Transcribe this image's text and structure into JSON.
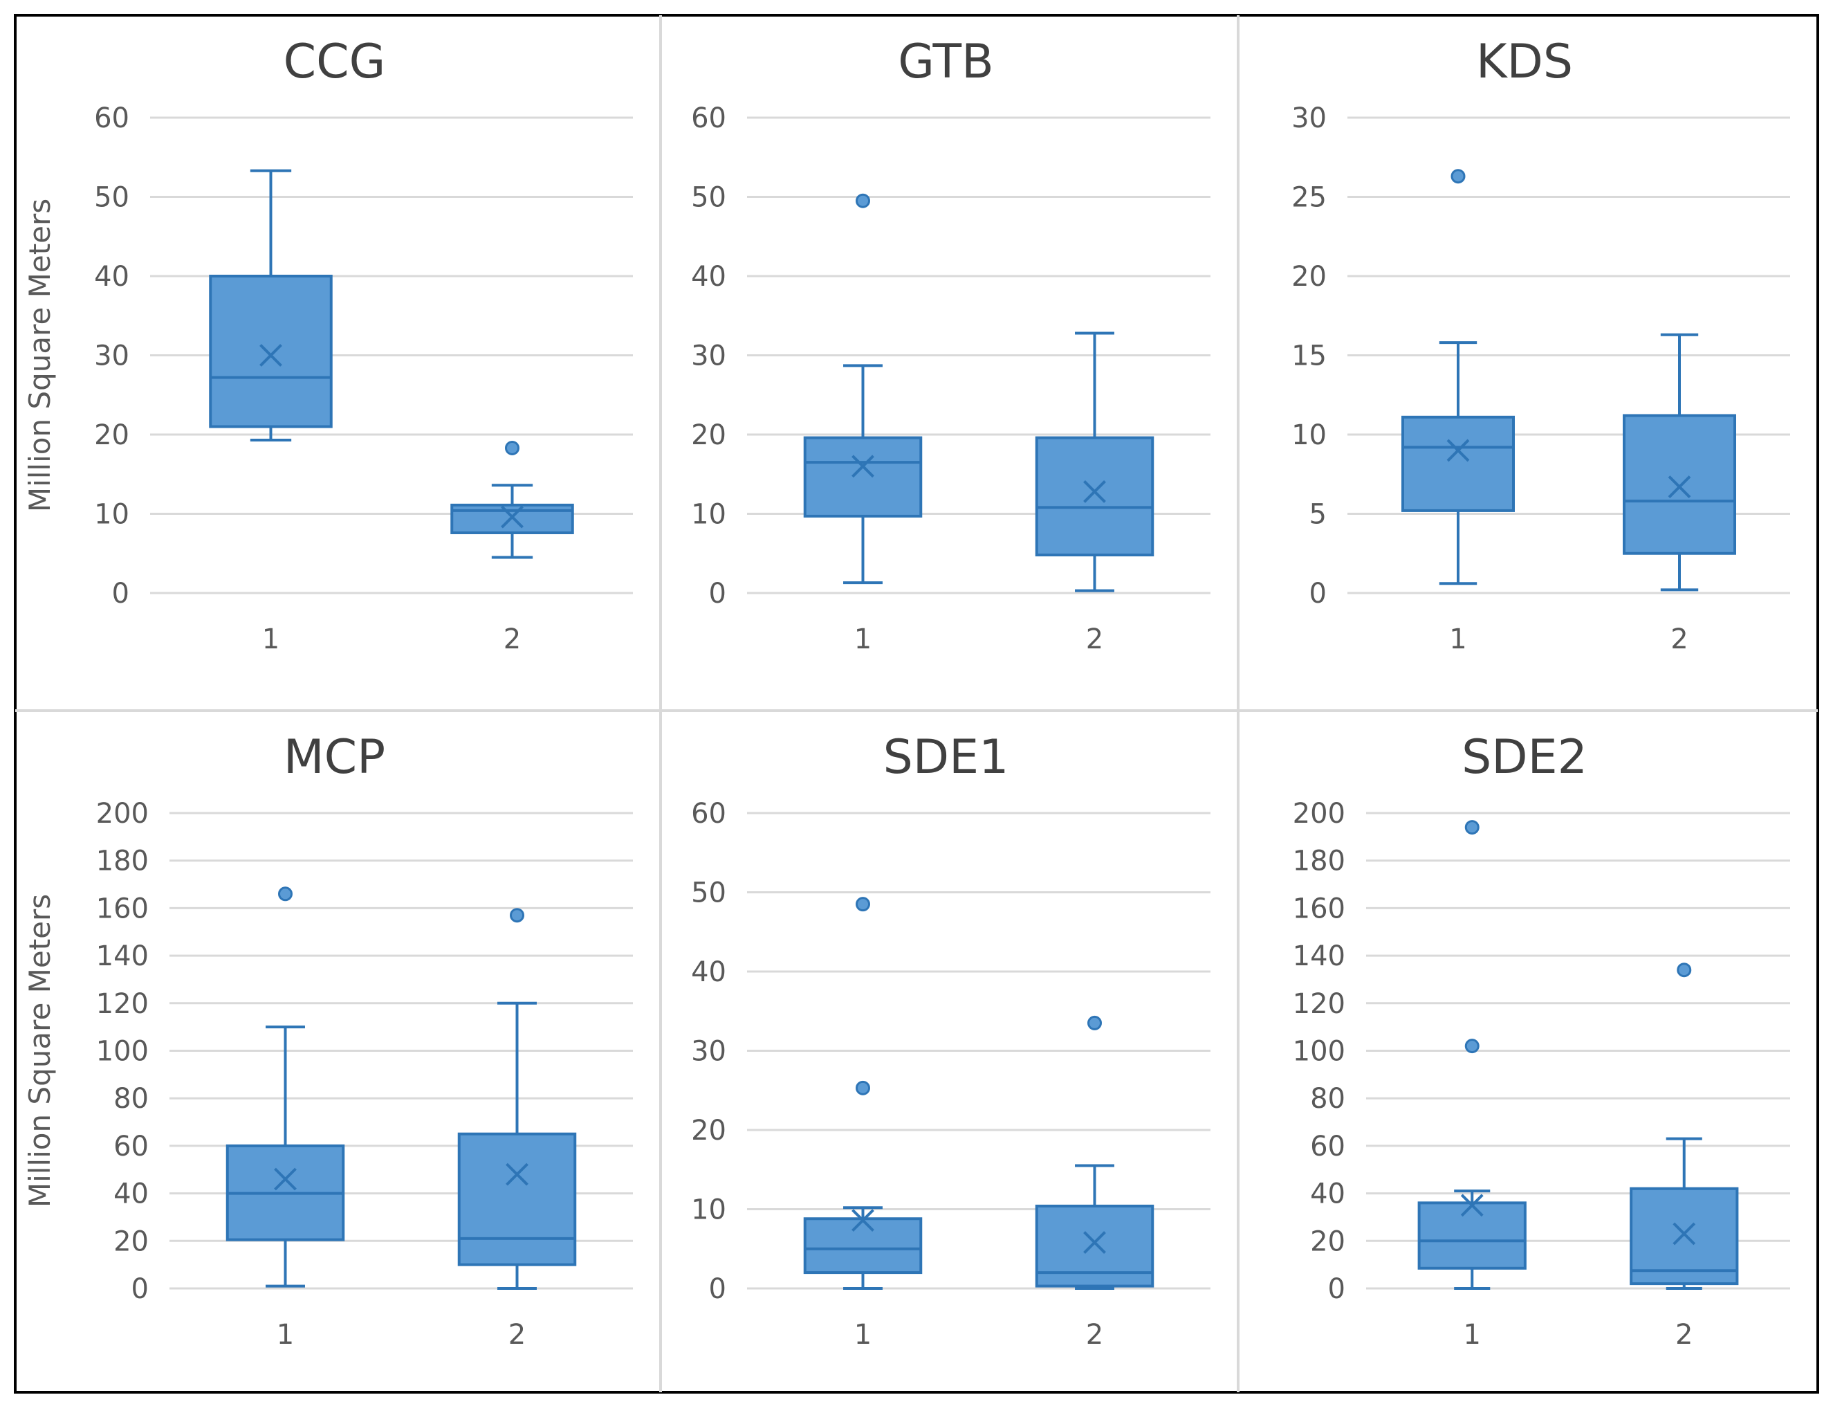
{
  "chart_data": {
    "type": "boxplot",
    "figure_ylabel": "Million Square Meters",
    "categories": [
      "1",
      "2"
    ],
    "colors": {
      "box_fill": "#5b9bd5",
      "box_stroke": "#2e75b6",
      "grid": "#d9d9d9",
      "text": "#595959",
      "title": "#404040",
      "frame": "#000000"
    },
    "panels": [
      {
        "title": "CCG",
        "ylim": [
          0,
          60
        ],
        "yticks": [
          "0",
          "10",
          "20",
          "30",
          "40",
          "50",
          "60"
        ],
        "show_ylabel": true,
        "boxes": [
          {
            "category": "1",
            "whisker_low": 19.3,
            "q1": 21,
            "median": 27.2,
            "q3": 40,
            "whisker_high": 53.3,
            "mean": 30,
            "outliers": []
          },
          {
            "category": "2",
            "whisker_low": 4.5,
            "q1": 7.6,
            "median": 10.4,
            "q3": 11.1,
            "whisker_high": 13.6,
            "mean": 9.6,
            "outliers": [
              18.3
            ]
          }
        ]
      },
      {
        "title": "GTB",
        "ylim": [
          0,
          60
        ],
        "yticks": [
          "0",
          "10",
          "20",
          "30",
          "40",
          "50",
          "60"
        ],
        "show_ylabel": false,
        "boxes": [
          {
            "category": "1",
            "whisker_low": 1.3,
            "q1": 9.7,
            "median": 16.5,
            "q3": 19.6,
            "whisker_high": 28.7,
            "mean": 16,
            "outliers": [
              49.5
            ]
          },
          {
            "category": "2",
            "whisker_low": 0.3,
            "q1": 4.8,
            "median": 10.8,
            "q3": 19.6,
            "whisker_high": 32.8,
            "mean": 12.8,
            "outliers": []
          }
        ]
      },
      {
        "title": "KDS",
        "ylim": [
          0,
          30
        ],
        "yticks": [
          "0",
          "5",
          "10",
          "15",
          "20",
          "25",
          "30"
        ],
        "show_ylabel": false,
        "boxes": [
          {
            "category": "1",
            "whisker_low": 0.6,
            "q1": 5.2,
            "median": 9.2,
            "q3": 11.1,
            "whisker_high": 15.8,
            "mean": 9,
            "outliers": [
              26.3
            ]
          },
          {
            "category": "2",
            "whisker_low": 0.2,
            "q1": 2.5,
            "median": 5.8,
            "q3": 11.2,
            "whisker_high": 16.3,
            "mean": 6.7,
            "outliers": []
          }
        ]
      },
      {
        "title": "MCP",
        "ylim": [
          0,
          200
        ],
        "yticks": [
          "0",
          "20",
          "40",
          "60",
          "80",
          "100",
          "120",
          "140",
          "160",
          "180",
          "200"
        ],
        "show_ylabel": true,
        "boxes": [
          {
            "category": "1",
            "whisker_low": 1,
            "q1": 20.5,
            "median": 40,
            "q3": 60,
            "whisker_high": 110,
            "mean": 46,
            "outliers": [
              166
            ]
          },
          {
            "category": "2",
            "whisker_low": 0,
            "q1": 10,
            "median": 21,
            "q3": 65,
            "whisker_high": 120,
            "mean": 48,
            "outliers": [
              157
            ]
          }
        ]
      },
      {
        "title": "SDE1",
        "ylim": [
          0,
          60
        ],
        "yticks": [
          "0",
          "10",
          "20",
          "30",
          "40",
          "50",
          "60"
        ],
        "show_ylabel": false,
        "boxes": [
          {
            "category": "1",
            "whisker_low": 0,
            "q1": 2,
            "median": 5,
            "q3": 8.8,
            "whisker_high": 10.2,
            "mean": 8.6,
            "outliers": [
              25.3,
              48.5
            ]
          },
          {
            "category": "2",
            "whisker_low": 0,
            "q1": 0.3,
            "median": 2,
            "q3": 10.4,
            "whisker_high": 15.5,
            "mean": 5.8,
            "outliers": [
              33.5
            ]
          }
        ]
      },
      {
        "title": "SDE2",
        "ylim": [
          0,
          200
        ],
        "yticks": [
          "0",
          "20",
          "40",
          "60",
          "80",
          "100",
          "120",
          "140",
          "160",
          "180",
          "200"
        ],
        "show_ylabel": false,
        "boxes": [
          {
            "category": "1",
            "whisker_low": 0,
            "q1": 8.5,
            "median": 20,
            "q3": 36,
            "whisker_high": 41,
            "mean": 35,
            "outliers": [
              102,
              194
            ]
          },
          {
            "category": "2",
            "whisker_low": 0,
            "q1": 2,
            "median": 7.5,
            "q3": 42,
            "whisker_high": 63,
            "mean": 23,
            "outliers": [
              134
            ]
          }
        ]
      }
    ]
  }
}
